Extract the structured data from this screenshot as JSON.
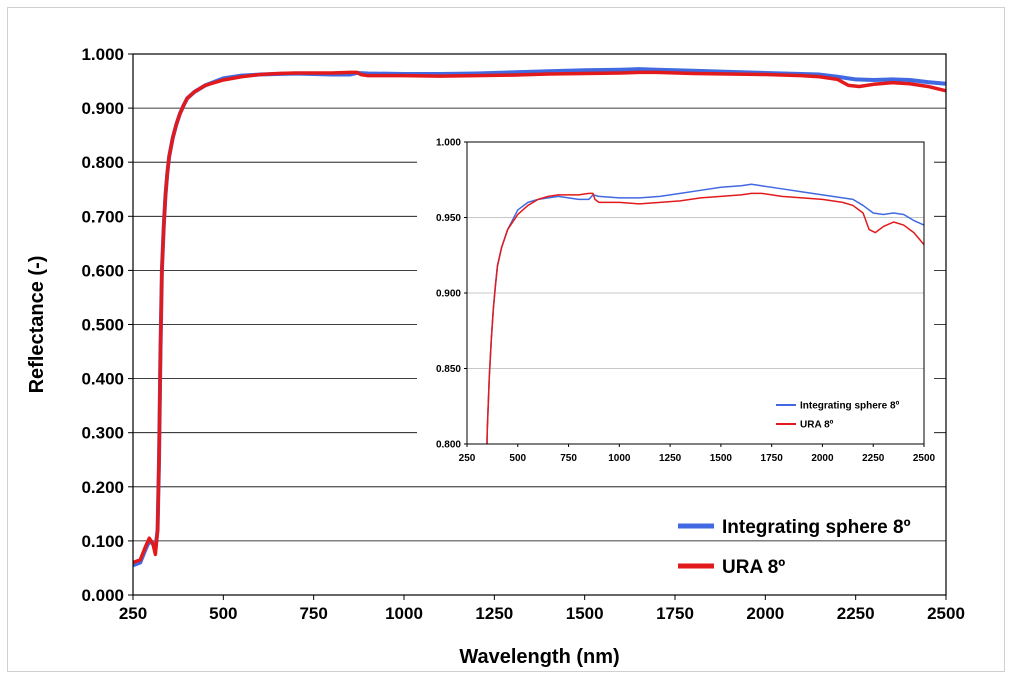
{
  "chart_data": [
    {
      "type": "line",
      "xlabel": "Wavelength (nm)",
      "ylabel": "Reflectance (-)",
      "xlim": [
        250,
        2500
      ],
      "ylim": [
        0,
        1
      ],
      "xticks": [
        "250",
        "500",
        "750",
        "1000",
        "1250",
        "1500",
        "1750",
        "2000",
        "2250",
        "2500"
      ],
      "yticks": [
        "0.000",
        "0.100",
        "0.200",
        "0.300",
        "0.400",
        "0.500",
        "0.600",
        "0.700",
        "0.800",
        "0.900",
        "1.000"
      ],
      "grid": "horizontal",
      "legend": "bottom-right",
      "series": [
        {
          "name": "Integrating sphere 8º",
          "color": "#4169e1",
          "x": [
            250,
            270,
            285,
            295,
            305,
            312,
            318,
            322,
            326,
            330,
            335,
            340,
            345,
            350,
            360,
            370,
            380,
            390,
            400,
            420,
            450,
            500,
            550,
            600,
            650,
            700,
            750,
            800,
            850,
            870,
            900,
            1000,
            1100,
            1200,
            1300,
            1400,
            1500,
            1600,
            1650,
            1700,
            1800,
            1900,
            2000,
            2100,
            2150,
            2200,
            2250,
            2300,
            2350,
            2400,
            2450,
            2500
          ],
          "y": [
            0.055,
            0.06,
            0.085,
            0.1,
            0.095,
            0.085,
            0.12,
            0.25,
            0.45,
            0.6,
            0.68,
            0.74,
            0.78,
            0.81,
            0.845,
            0.87,
            0.89,
            0.905,
            0.918,
            0.93,
            0.942,
            0.955,
            0.96,
            0.962,
            0.963,
            0.964,
            0.963,
            0.962,
            0.962,
            0.965,
            0.964,
            0.963,
            0.963,
            0.964,
            0.966,
            0.968,
            0.97,
            0.971,
            0.972,
            0.971,
            0.969,
            0.967,
            0.965,
            0.963,
            0.962,
            0.958,
            0.953,
            0.952,
            0.953,
            0.952,
            0.948,
            0.945
          ]
        },
        {
          "name": "URA 8º",
          "color": "#e31a1c",
          "x": [
            250,
            270,
            285,
            295,
            305,
            312,
            318,
            322,
            326,
            330,
            335,
            340,
            345,
            350,
            360,
            370,
            380,
            390,
            400,
            420,
            450,
            500,
            550,
            600,
            650,
            700,
            750,
            800,
            850,
            870,
            880,
            900,
            1000,
            1100,
            1200,
            1300,
            1400,
            1500,
            1600,
            1650,
            1700,
            1800,
            1900,
            2000,
            2100,
            2150,
            2200,
            2230,
            2260,
            2300,
            2350,
            2400,
            2450,
            2500
          ],
          "y": [
            0.06,
            0.065,
            0.09,
            0.105,
            0.095,
            0.075,
            0.12,
            0.25,
            0.45,
            0.6,
            0.68,
            0.74,
            0.78,
            0.81,
            0.845,
            0.87,
            0.89,
            0.905,
            0.918,
            0.93,
            0.942,
            0.952,
            0.958,
            0.962,
            0.964,
            0.965,
            0.965,
            0.965,
            0.966,
            0.966,
            0.962,
            0.96,
            0.96,
            0.959,
            0.96,
            0.961,
            0.963,
            0.964,
            0.965,
            0.966,
            0.966,
            0.964,
            0.963,
            0.962,
            0.96,
            0.958,
            0.953,
            0.942,
            0.94,
            0.944,
            0.947,
            0.945,
            0.94,
            0.932
          ]
        }
      ]
    },
    {
      "type": "line",
      "xlim": [
        250,
        2500
      ],
      "ylim": [
        0.8,
        1.0
      ],
      "xticks": [
        "250",
        "500",
        "750",
        "1000",
        "1250",
        "1500",
        "1750",
        "2000",
        "2250",
        "2500"
      ],
      "yticks": [
        "0.800",
        "0.850",
        "0.900",
        "0.950",
        "1.000"
      ],
      "grid": "horizontal",
      "legend": "bottom-right",
      "series": [
        {
          "name": "Integrating sphere 8º",
          "color": "#4169e1",
          "x": [
            345,
            350,
            360,
            370,
            380,
            390,
            400,
            420,
            450,
            500,
            550,
            600,
            650,
            700,
            750,
            800,
            850,
            870,
            900,
            1000,
            1100,
            1200,
            1300,
            1400,
            1500,
            1600,
            1650,
            1700,
            1800,
            1900,
            2000,
            2100,
            2150,
            2200,
            2250,
            2300,
            2350,
            2400,
            2450,
            2500
          ],
          "y": [
            0.78,
            0.81,
            0.845,
            0.87,
            0.89,
            0.905,
            0.918,
            0.93,
            0.942,
            0.955,
            0.96,
            0.962,
            0.963,
            0.964,
            0.963,
            0.962,
            0.962,
            0.965,
            0.964,
            0.963,
            0.963,
            0.964,
            0.966,
            0.968,
            0.97,
            0.971,
            0.972,
            0.971,
            0.969,
            0.967,
            0.965,
            0.963,
            0.962,
            0.958,
            0.953,
            0.952,
            0.953,
            0.952,
            0.948,
            0.945
          ]
        },
        {
          "name": "URA 8º",
          "color": "#e31a1c",
          "x": [
            345,
            350,
            360,
            370,
            380,
            390,
            400,
            420,
            450,
            500,
            550,
            600,
            650,
            700,
            750,
            800,
            850,
            870,
            880,
            900,
            1000,
            1100,
            1200,
            1300,
            1400,
            1500,
            1600,
            1650,
            1700,
            1800,
            1900,
            2000,
            2100,
            2150,
            2200,
            2230,
            2260,
            2300,
            2350,
            2400,
            2450,
            2500
          ],
          "y": [
            0.78,
            0.81,
            0.845,
            0.87,
            0.89,
            0.905,
            0.918,
            0.93,
            0.942,
            0.952,
            0.958,
            0.962,
            0.964,
            0.965,
            0.965,
            0.965,
            0.966,
            0.966,
            0.962,
            0.96,
            0.96,
            0.959,
            0.96,
            0.961,
            0.963,
            0.964,
            0.965,
            0.966,
            0.966,
            0.964,
            0.963,
            0.962,
            0.96,
            0.958,
            0.953,
            0.942,
            0.94,
            0.944,
            0.947,
            0.945,
            0.94,
            0.932
          ]
        }
      ]
    }
  ]
}
